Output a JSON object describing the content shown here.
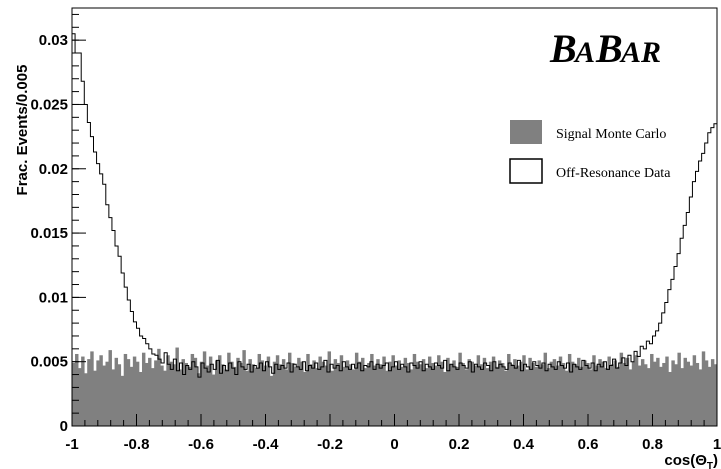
{
  "chart_data": {
    "type": "histogram",
    "title": "",
    "xlabel": "cos(ΘT)",
    "ylabel": "Frac. Events/0.005",
    "xlim": [
      -1,
      1
    ],
    "ylim": [
      0,
      0.0325
    ],
    "bin_width": 0.01,
    "x_ticks": [
      -1,
      -0.8,
      -0.6,
      -0.4,
      -0.2,
      0,
      0.2,
      0.4,
      0.6,
      0.8,
      1
    ],
    "x_tick_labels": [
      "-1",
      "-0.8",
      "-0.6",
      "-0.4",
      "-0.2",
      "0",
      "0.2",
      "0.4",
      "0.6",
      "0.8",
      "1"
    ],
    "y_ticks": [
      0,
      0.005,
      0.01,
      0.015,
      0.02,
      0.025,
      0.03
    ],
    "y_tick_labels": [
      "0",
      "0.005",
      "0.01",
      "0.015",
      "0.02",
      "0.025",
      "0.03"
    ],
    "legend_position": "right",
    "grid": false,
    "logo": "BABAR",
    "series": [
      {
        "name": "Signal Monte Carlo",
        "style": "filled",
        "color": "#808080",
        "approx_level": 0.005,
        "values": [
          0.0049,
          0.0056,
          0.0045,
          0.0054,
          0.0041,
          0.0052,
          0.0058,
          0.0043,
          0.0051,
          0.0055,
          0.0047,
          0.005,
          0.0059,
          0.0044,
          0.0053,
          0.0048,
          0.0039,
          0.0056,
          0.0052,
          0.0046,
          0.0054,
          0.005,
          0.0042,
          0.0057,
          0.0049,
          0.0053,
          0.0045,
          0.0051,
          0.006,
          0.0047,
          0.0043,
          0.0055,
          0.005,
          0.0048,
          0.0061,
          0.0044,
          0.0052,
          0.0049,
          0.0046,
          0.0056,
          0.0053,
          0.0041,
          0.005,
          0.0058,
          0.0047,
          0.0054,
          0.004,
          0.0051,
          0.0055,
          0.0048,
          0.0044,
          0.0057,
          0.005,
          0.0046,
          0.0053,
          0.0049,
          0.0059,
          0.0043,
          0.0052,
          0.0048,
          0.0045,
          0.0056,
          0.0051,
          0.0047,
          0.0054,
          0.0039,
          0.005,
          0.0055,
          0.0048,
          0.0052,
          0.0044,
          0.0057,
          0.0049,
          0.0046,
          0.0053,
          0.005,
          0.0042,
          0.0056,
          0.0048,
          0.0051,
          0.0045,
          0.0054,
          0.005,
          0.0047,
          0.0058,
          0.0043,
          0.0052,
          0.0049,
          0.0055,
          0.0046,
          0.0051,
          0.0048,
          0.0044,
          0.0057,
          0.005,
          0.0053,
          0.0045,
          0.0049,
          0.0056,
          0.0047,
          0.0052,
          0.0048,
          0.0054,
          0.0043,
          0.005,
          0.0055,
          0.0047,
          0.0051,
          0.0046,
          0.0053,
          0.0049,
          0.0044,
          0.0056,
          0.005,
          0.0048,
          0.0052,
          0.0045,
          0.0054,
          0.0049,
          0.0047,
          0.0055,
          0.005,
          0.0042,
          0.0053,
          0.0048,
          0.0051,
          0.0046,
          0.0057,
          0.0049,
          0.0044,
          0.0052,
          0.005,
          0.0047,
          0.0055,
          0.0048,
          0.0053,
          0.0045,
          0.005,
          0.0054,
          0.0046,
          0.0051,
          0.0049,
          0.0043,
          0.0056,
          0.0048,
          0.0052,
          0.0047,
          0.005,
          0.0055,
          0.0044,
          0.0053,
          0.0049,
          0.0046,
          0.0051,
          0.0048,
          0.0057,
          0.0045,
          0.005,
          0.0052,
          0.0047,
          0.0054,
          0.0049,
          0.0043,
          0.0056,
          0.005,
          0.0048,
          0.0053,
          0.0046,
          0.0051,
          0.0049,
          0.0044,
          0.0055,
          0.0047,
          0.0052,
          0.005,
          0.0045,
          0.0054,
          0.0048,
          0.0051,
          0.0046,
          0.0057,
          0.0049,
          0.0053,
          0.0044,
          0.005,
          0.0055,
          0.0047,
          0.0052,
          0.0048,
          0.0045,
          0.0056,
          0.005,
          0.0053,
          0.0046,
          0.0049,
          0.0054,
          0.0042,
          0.0051,
          0.0048,
          0.0057,
          0.0045,
          0.0053,
          0.005,
          0.0047,
          0.0055,
          0.0049,
          0.0044,
          0.0058,
          0.0051,
          0.0046,
          0.0052,
          0.0048
        ]
      },
      {
        "name": "Off-Resonance Data",
        "style": "outline",
        "color": "#000000",
        "values": [
          0.0305,
          0.029,
          0.029,
          0.0268,
          0.025,
          0.0236,
          0.0225,
          0.0213,
          0.0204,
          0.0196,
          0.0188,
          0.0172,
          0.0162,
          0.0152,
          0.014,
          0.0132,
          0.0119,
          0.0108,
          0.0098,
          0.0089,
          0.0081,
          0.0076,
          0.007,
          0.0068,
          0.0064,
          0.006,
          0.0056,
          0.0055,
          0.0052,
          0.0049,
          0.0057,
          0.0048,
          0.0044,
          0.0052,
          0.0043,
          0.0049,
          0.004,
          0.0047,
          0.0044,
          0.005,
          0.0046,
          0.0038,
          0.0049,
          0.0045,
          0.0042,
          0.0048,
          0.0044,
          0.0051,
          0.0041,
          0.0047,
          0.0043,
          0.0049,
          0.0045,
          0.004,
          0.005,
          0.0046,
          0.0044,
          0.0048,
          0.0042,
          0.0047,
          0.0045,
          0.0049,
          0.0043,
          0.005,
          0.0046,
          0.0041,
          0.0048,
          0.0044,
          0.0047,
          0.0045,
          0.0049,
          0.0042,
          0.0048,
          0.0046,
          0.0044,
          0.005,
          0.0043,
          0.0047,
          0.0045,
          0.0049,
          0.0044,
          0.0046,
          0.0051,
          0.0042,
          0.0048,
          0.0045,
          0.0047,
          0.0043,
          0.005,
          0.0046,
          0.0044,
          0.0048,
          0.0045,
          0.0049,
          0.0043,
          0.0047,
          0.0046,
          0.005,
          0.0044,
          0.0048,
          0.0045,
          0.0047,
          0.0049,
          0.0043,
          0.0046,
          0.005,
          0.0044,
          0.0048,
          0.0046,
          0.0042,
          0.0049,
          0.0047,
          0.0045,
          0.005,
          0.0043,
          0.0048,
          0.0046,
          0.0044,
          0.0049,
          0.0047,
          0.0045,
          0.0051,
          0.0043,
          0.0048,
          0.0046,
          0.0044,
          0.0049,
          0.0047,
          0.0045,
          0.005,
          0.0042,
          0.0048,
          0.0046,
          0.0044,
          0.0049,
          0.0047,
          0.0043,
          0.005,
          0.0045,
          0.0048,
          0.0046,
          0.0044,
          0.0049,
          0.0047,
          0.0045,
          0.0051,
          0.0043,
          0.0048,
          0.0046,
          0.0044,
          0.005,
          0.0047,
          0.0045,
          0.0049,
          0.0043,
          0.0048,
          0.0046,
          0.0044,
          0.005,
          0.0047,
          0.0045,
          0.0049,
          0.0042,
          0.0048,
          0.0046,
          0.0044,
          0.0051,
          0.0047,
          0.0045,
          0.0049,
          0.0043,
          0.0048,
          0.0046,
          0.005,
          0.0044,
          0.0047,
          0.0052,
          0.0045,
          0.0049,
          0.0053,
          0.0047,
          0.0055,
          0.005,
          0.0058,
          0.0054,
          0.0062,
          0.006,
          0.0066,
          0.0064,
          0.007,
          0.0074,
          0.008,
          0.0088,
          0.0096,
          0.0106,
          0.0114,
          0.0124,
          0.0134,
          0.0146,
          0.0156,
          0.0166,
          0.0178,
          0.019,
          0.0198,
          0.0206,
          0.0212,
          0.022,
          0.0228,
          0.0232,
          0.0235
        ]
      }
    ]
  }
}
